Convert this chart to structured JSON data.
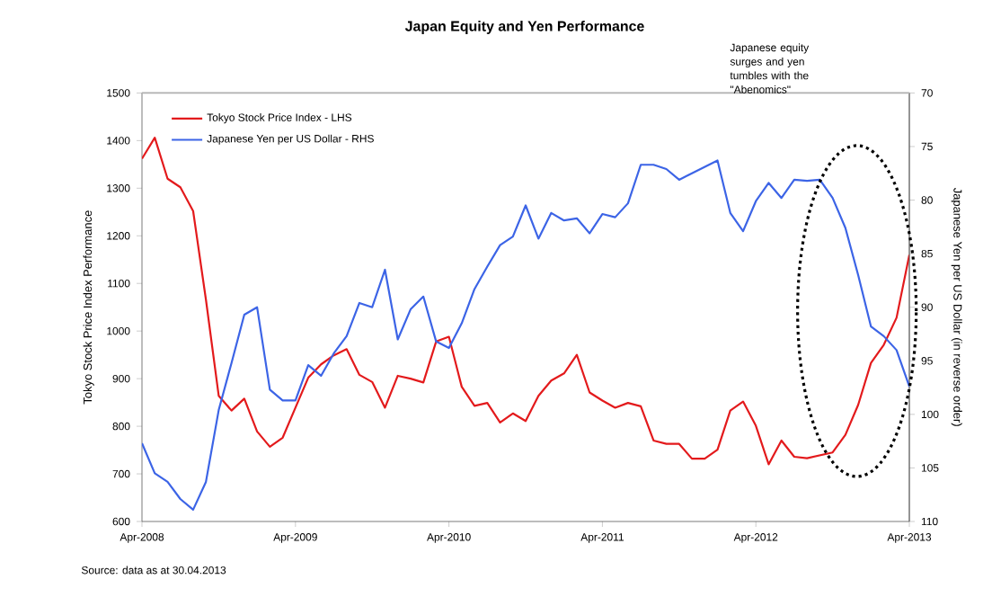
{
  "chart_data": {
    "type": "line",
    "title": "Japan Equity and Yen Performance",
    "ylabel": "Tokyo Stock Price Index Performance",
    "y2label": "Japanese Yen per US Dollar (in reverse order)",
    "annotations": [
      "Japanese equity surges and yen tumbles with the \"Abenomics\"",
      "Source: data as at 30.04.2013"
    ],
    "x": [
      "2008-04",
      "2008-05",
      "2008-06",
      "2008-07",
      "2008-08",
      "2008-09",
      "2008-10",
      "2008-11",
      "2008-12",
      "2009-01",
      "2009-02",
      "2009-03",
      "2009-04",
      "2009-05",
      "2009-06",
      "2009-07",
      "2009-08",
      "2009-09",
      "2009-10",
      "2009-11",
      "2009-12",
      "2010-01",
      "2010-02",
      "2010-03",
      "2010-04",
      "2010-05",
      "2010-06",
      "2010-07",
      "2010-08",
      "2010-09",
      "2010-10",
      "2010-11",
      "2010-12",
      "2011-01",
      "2011-02",
      "2011-03",
      "2011-04",
      "2011-05",
      "2011-06",
      "2011-07",
      "2011-08",
      "2011-09",
      "2011-10",
      "2011-11",
      "2011-12",
      "2012-01",
      "2012-02",
      "2012-03",
      "2012-04",
      "2012-05",
      "2012-06",
      "2012-07",
      "2012-08",
      "2012-09",
      "2012-10",
      "2012-11",
      "2012-12",
      "2013-01",
      "2013-02",
      "2013-03",
      "2013-04"
    ],
    "series": [
      {
        "name": "Tokyo Stock Price Index - LHS",
        "color": "#e31a1c",
        "axis": "y",
        "values": [
          1362,
          1406,
          1320,
          1302,
          1252,
          1066,
          864,
          833,
          858,
          789,
          757,
          776,
          839,
          902,
          930,
          949,
          962,
          908,
          893,
          839,
          906,
          900,
          892,
          978,
          988,
          883,
          843,
          849,
          808,
          827,
          811,
          864,
          896,
          911,
          950,
          871,
          854,
          839,
          849,
          842,
          770,
          763,
          763,
          732,
          732,
          751,
          833,
          852,
          801,
          720,
          770,
          736,
          733,
          739,
          745,
          782,
          845,
          933,
          971,
          1028,
          1160
        ]
      },
      {
        "name": "Japanese Yen per US Dollar - RHS",
        "color": "#3c64e6",
        "axis": "y2",
        "values": [
          102.7,
          105.5,
          106.3,
          107.9,
          108.9,
          106.3,
          99.6,
          95.2,
          90.7,
          90.0,
          97.7,
          98.7,
          98.7,
          95.4,
          96.4,
          94.3,
          92.7,
          89.6,
          90.0,
          86.5,
          93.0,
          90.2,
          89.0,
          93.2,
          93.8,
          91.5,
          88.3,
          86.2,
          84.2,
          83.4,
          80.5,
          83.6,
          81.2,
          81.9,
          81.7,
          83.1,
          81.3,
          81.6,
          80.3,
          76.7,
          76.7,
          77.1,
          78.1,
          77.5,
          76.9,
          76.3,
          81.2,
          82.9,
          80.1,
          78.4,
          79.8,
          78.1,
          78.2,
          78.1,
          79.8,
          82.6,
          87.0,
          91.8,
          92.7,
          94.0,
          97.4
        ]
      }
    ],
    "xlim": [
      "2008-04",
      "2013-04"
    ],
    "xticks": [
      {
        "value": "2008-04",
        "label": "Apr-2008"
      },
      {
        "value": "2009-04",
        "label": "Apr-2009"
      },
      {
        "value": "2010-04",
        "label": "Apr-2010"
      },
      {
        "value": "2011-04",
        "label": "Apr-2011"
      },
      {
        "value": "2012-04",
        "label": "Apr-2012"
      },
      {
        "value": "2013-04",
        "label": "Apr-2013"
      }
    ],
    "ylim": [
      600,
      1500
    ],
    "yticks": [
      600,
      700,
      800,
      900,
      1000,
      1100,
      1200,
      1300,
      1400,
      1500
    ],
    "y2lim": [
      110,
      70
    ],
    "y2ticks": [
      70,
      75,
      80,
      85,
      90,
      95,
      100,
      105,
      110
    ],
    "grid": false,
    "legend": "top left"
  }
}
